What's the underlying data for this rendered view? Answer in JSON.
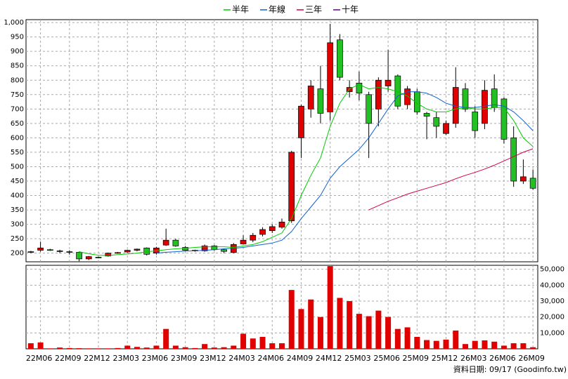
{
  "chart_data": {
    "type": "candlestick",
    "x": [
      null,
      "22M06",
      null,
      null,
      "22M09",
      null,
      null,
      "22M12",
      null,
      null,
      "23M03",
      null,
      null,
      "23M06",
      null,
      null,
      "23M09",
      null,
      null,
      "23M12",
      null,
      null,
      "24M03",
      null,
      null,
      "24M06",
      null,
      null,
      "24M09",
      null,
      null,
      "24M12",
      null,
      null,
      "25M03",
      null,
      null,
      "25M06",
      null,
      null,
      "25M09",
      null,
      null,
      "25M12",
      null,
      null,
      "26M03",
      null,
      null,
      "26M06",
      null,
      null,
      "26M09"
    ],
    "open": [
      205,
      210,
      212,
      208,
      205,
      203,
      180,
      186,
      190,
      201,
      204,
      210,
      218,
      200,
      228,
      245,
      220,
      210,
      208,
      225,
      212,
      202,
      232,
      245,
      265,
      278,
      290,
      312,
      600,
      700,
      770,
      690,
      940,
      760,
      790,
      750,
      700,
      780,
      815,
      715,
      760,
      685,
      670,
      615,
      650,
      770,
      690,
      650,
      770,
      735,
      600,
      450,
      460
    ],
    "high": [
      208,
      240,
      215,
      212,
      210,
      205,
      190,
      188,
      202,
      204,
      212,
      216,
      220,
      222,
      285,
      250,
      225,
      212,
      230,
      228,
      215,
      235,
      262,
      270,
      290,
      300,
      320,
      555,
      715,
      800,
      850,
      995,
      960,
      800,
      830,
      760,
      810,
      905,
      820,
      780,
      770,
      690,
      690,
      660,
      845,
      790,
      710,
      800,
      820,
      740,
      640,
      525,
      490
    ],
    "low": [
      200,
      205,
      208,
      200,
      195,
      172,
      176,
      182,
      188,
      198,
      202,
      206,
      192,
      195,
      225,
      222,
      208,
      205,
      205,
      208,
      200,
      200,
      230,
      238,
      258,
      270,
      285,
      305,
      530,
      670,
      650,
      660,
      800,
      740,
      730,
      530,
      640,
      760,
      700,
      700,
      680,
      595,
      600,
      610,
      635,
      690,
      600,
      630,
      690,
      580,
      430,
      440,
      420
    ],
    "close": [
      204,
      218,
      211,
      208,
      203,
      180,
      188,
      185,
      200,
      202,
      210,
      214,
      196,
      218,
      245,
      225,
      210,
      208,
      225,
      212,
      206,
      230,
      245,
      262,
      282,
      292,
      308,
      550,
      710,
      780,
      685,
      930,
      810,
      775,
      755,
      650,
      800,
      800,
      710,
      770,
      690,
      675,
      640,
      650,
      775,
      700,
      625,
      765,
      705,
      595,
      450,
      465,
      425
    ],
    "up_color": "#e00000",
    "down_color": "#22c022",
    "volume": [
      3500,
      4000,
      300,
      800,
      500,
      400,
      300,
      300,
      300,
      500,
      2000,
      1200,
      800,
      2000,
      12500,
      2000,
      1000,
      500,
      3000,
      800,
      1000,
      2000,
      9500,
      6500,
      7500,
      3500,
      3500,
      37000,
      25000,
      31000,
      20000,
      52000,
      32000,
      30000,
      22000,
      20500,
      24000,
      20000,
      12500,
      13500,
      7500,
      5500,
      5000,
      5800,
      11500,
      3000,
      5000,
      5300,
      4500,
      2000,
      3500,
      3500,
      1000
    ],
    "volume_color": "#e00000",
    "lines": [
      {
        "name": "半年",
        "color": "#00cc00",
        "values": [
          null,
          null,
          null,
          null,
          null,
          205,
          198,
          193,
          192,
          195,
          197,
          200,
          205,
          208,
          212,
          215,
          217,
          220,
          222,
          222,
          222,
          220,
          225,
          230,
          240,
          255,
          270,
          320,
          400,
          470,
          530,
          640,
          720,
          770,
          785,
          770,
          775,
          770,
          760,
          745,
          720,
          700,
          690,
          690,
          700,
          705,
          700,
          700,
          705,
          705,
          660,
          600,
          570
        ]
      },
      {
        "name": "年線",
        "color": "#1060d0",
        "values": [
          null,
          null,
          null,
          null,
          null,
          null,
          null,
          null,
          null,
          null,
          null,
          null,
          null,
          200,
          203,
          205,
          207,
          208,
          210,
          212,
          215,
          217,
          220,
          225,
          230,
          235,
          245,
          275,
          320,
          360,
          400,
          460,
          500,
          530,
          560,
          600,
          650,
          700,
          745,
          760,
          760,
          755,
          740,
          720,
          710,
          705,
          705,
          710,
          715,
          710,
          690,
          660,
          625
        ]
      },
      {
        "name": "三年",
        "color": "#d0004a",
        "values": [
          null,
          null,
          null,
          null,
          null,
          null,
          null,
          null,
          null,
          null,
          null,
          null,
          null,
          null,
          null,
          null,
          null,
          null,
          null,
          null,
          null,
          null,
          null,
          null,
          null,
          null,
          null,
          null,
          null,
          null,
          null,
          null,
          null,
          null,
          null,
          350,
          365,
          380,
          392,
          405,
          415,
          425,
          435,
          445,
          458,
          470,
          480,
          492,
          505,
          520,
          535,
          550,
          562
        ]
      },
      {
        "name": "十年",
        "color": "#600090",
        "values": [
          null,
          null,
          null,
          null,
          null,
          null,
          null,
          null,
          null,
          null,
          null,
          null,
          null,
          null,
          null,
          null,
          null,
          null,
          null,
          null,
          null,
          null,
          null,
          null,
          null,
          null,
          null,
          null,
          null,
          null,
          null,
          null,
          null,
          null,
          null,
          null,
          null,
          null,
          null,
          null,
          null,
          null,
          null,
          null,
          null,
          null,
          null,
          null,
          null,
          null,
          null,
          null,
          null
        ]
      }
    ],
    "ylim": [
      170,
      1010
    ],
    "yticks": [
      200,
      250,
      300,
      350,
      400,
      450,
      500,
      550,
      600,
      650,
      700,
      750,
      800,
      850,
      900,
      950,
      {
        "value": 1000,
        "label": "1,000"
      }
    ],
    "volume_ylim": [
      0,
      52500
    ],
    "volume_yticks": [
      {
        "value": 10000,
        "label": "10,000"
      },
      {
        "value": 20000,
        "label": "20,000"
      },
      {
        "value": 30000,
        "label": "30,000"
      },
      {
        "value": 40000,
        "label": "40,000"
      },
      {
        "value": 50000,
        "label": "50,000"
      }
    ],
    "grid": true,
    "source": "資料日期: 09/17 (Goodinfo.tw)"
  }
}
